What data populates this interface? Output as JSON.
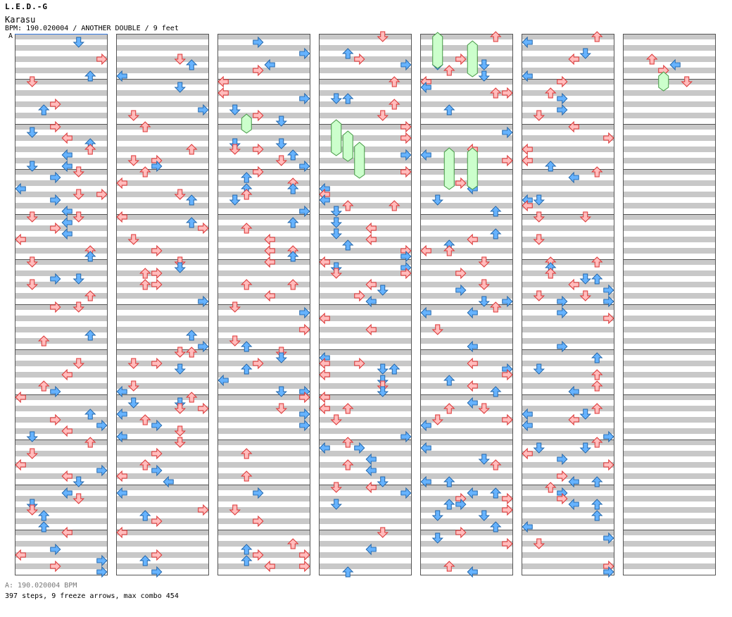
{
  "header": {
    "artist": "L.E.D.-G",
    "title": "Karasu",
    "info": "BPM: 190.020004 / ANOTHER DOUBLE / 9 feet",
    "bpm_marker": "A"
  },
  "footer": {
    "bpm": "A: 190.020004 BPM",
    "stats": "397 steps, 9 freeze arrows, max combo 454"
  },
  "colors": {
    "stripe": "#c8c8c8",
    "border": "#555555",
    "blue_fill": "#66b3ff",
    "blue_stroke": "#2266aa",
    "red_fill": "#ffbcbc",
    "red_stroke": "#dd3333",
    "freeze_fill": "#ccffcc",
    "freeze_stroke": "#449944"
  },
  "chart_data": {
    "type": "step-chart",
    "style": "ANOTHER DOUBLE",
    "bpm": 190.020004,
    "columns": 7,
    "measures_per_column": 12,
    "lanes": 8,
    "lane_order": [
      "P1-left",
      "P1-down",
      "P1-up",
      "P1-right",
      "P2-left",
      "P2-down",
      "P2-up",
      "P2-right"
    ],
    "row_unit": "1/8 note",
    "steps": 397,
    "freeze_arrows": 9,
    "max_combo": 454
  }
}
